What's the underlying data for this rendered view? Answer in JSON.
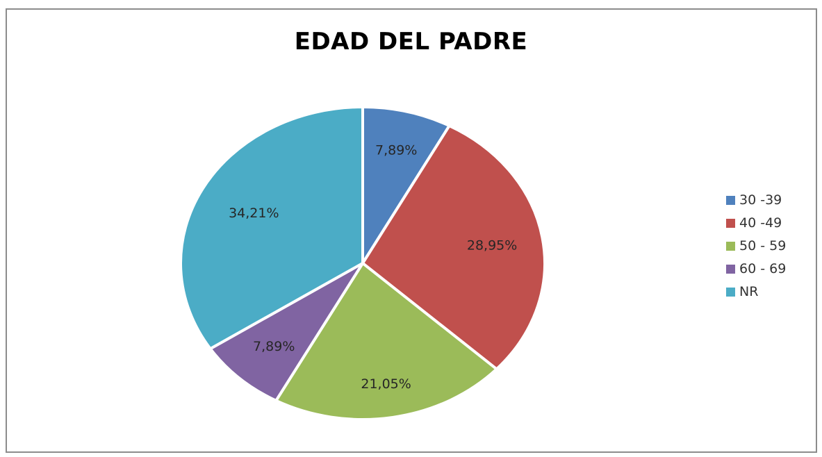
{
  "chart_data": {
    "type": "pie",
    "title": "EDAD DEL PADRE",
    "categories": [
      "30 -39",
      "40 -49",
      "50 - 59",
      "60 - 69",
      "NR"
    ],
    "values": [
      7.89,
      28.95,
      21.05,
      7.89,
      34.21
    ],
    "data_labels": [
      "7,89%",
      "28,95%",
      "21,05%",
      "7,89%",
      "34,21%"
    ],
    "colors": [
      "#4f81bd",
      "#c0504d",
      "#9bbb59",
      "#8064a2",
      "#4bacc6"
    ],
    "start_angle_deg": 0,
    "direction": "clockwise",
    "legend": "right"
  }
}
